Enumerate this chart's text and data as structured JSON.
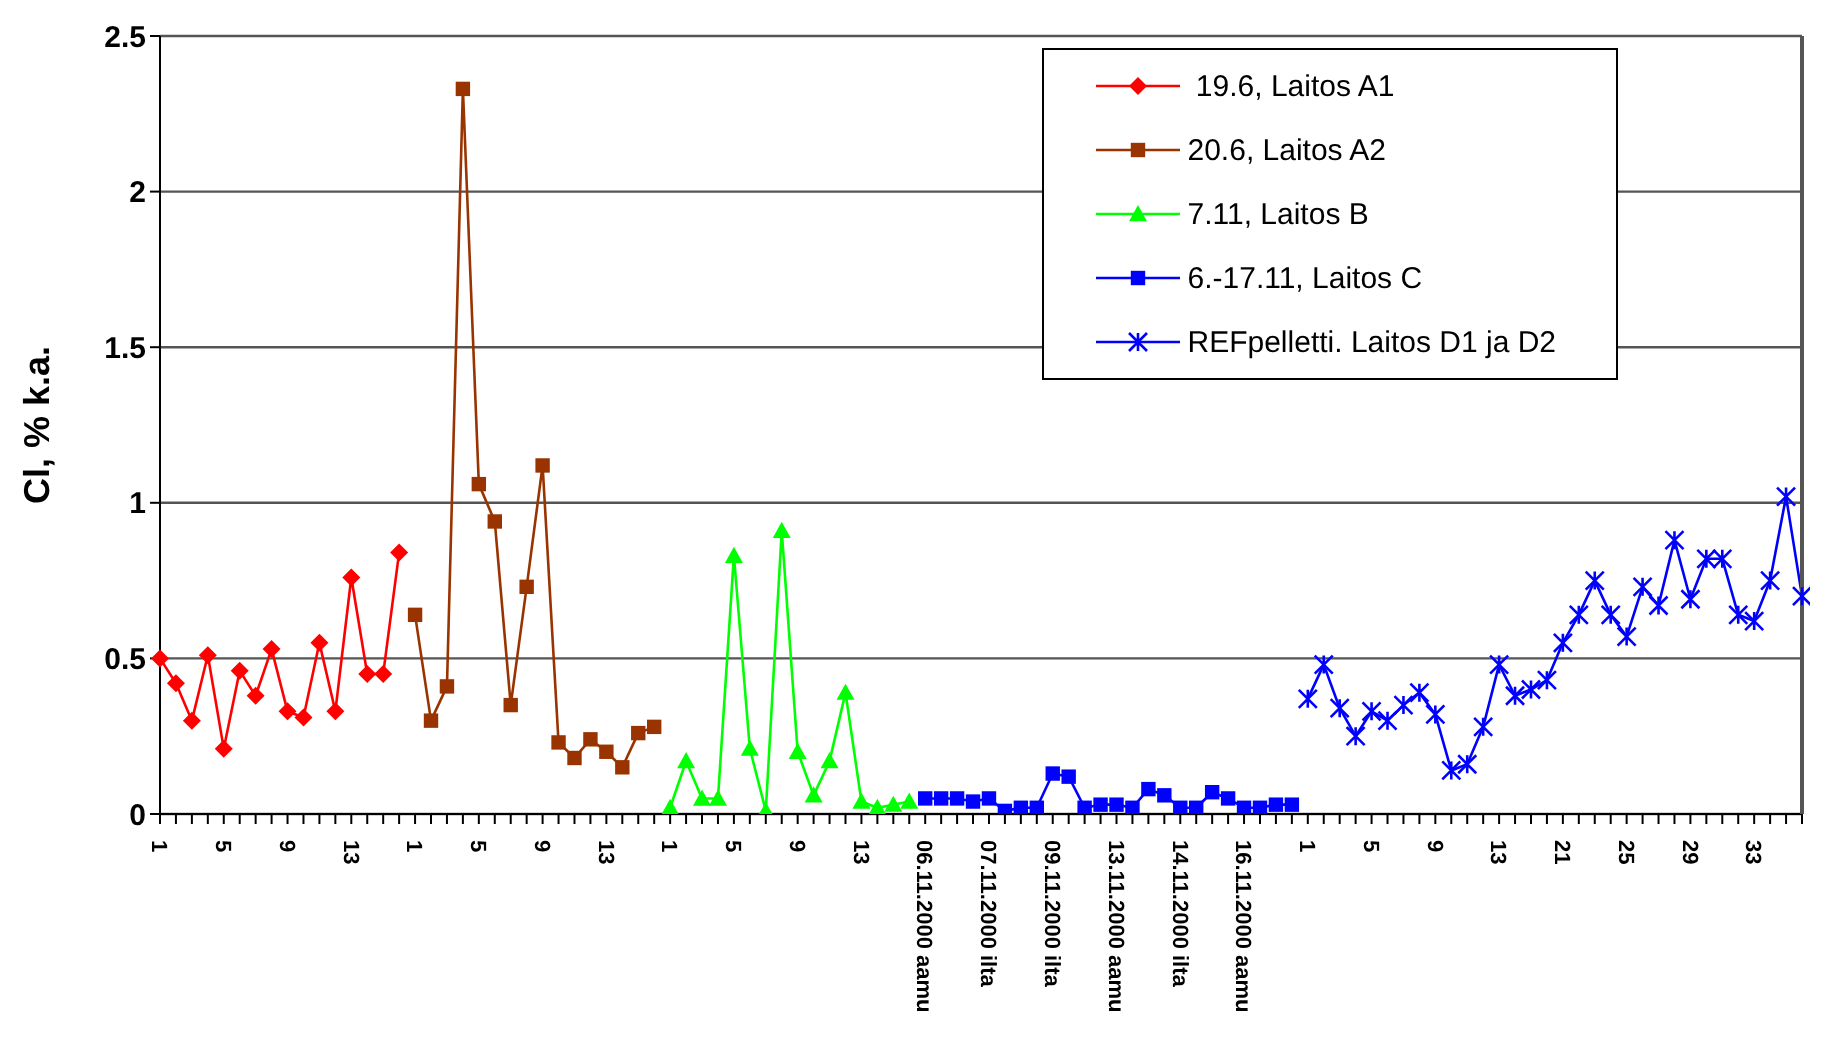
{
  "chart_data": {
    "type": "line",
    "ylabel": "Cl, % k.a.",
    "categories": [
      "1",
      null,
      null,
      null,
      "5",
      null,
      null,
      null,
      "9",
      null,
      null,
      null,
      "13",
      null,
      null,
      null,
      "1",
      null,
      null,
      null,
      "5",
      null,
      null,
      null,
      "9",
      null,
      null,
      null,
      "13",
      null,
      null,
      null,
      "1",
      null,
      null,
      null,
      "5",
      null,
      null,
      null,
      "9",
      null,
      null,
      null,
      "13",
      null,
      null,
      null,
      "06.11.2000 aamu",
      null,
      null,
      null,
      "07.11.2000 ilta",
      null,
      null,
      null,
      "09.11.2000 ilta",
      null,
      null,
      null,
      "13.11.2000 aamu",
      null,
      null,
      null,
      "14.11.2000 ilta",
      null,
      null,
      null,
      "16.11.2000 aamu",
      null,
      null,
      null,
      "1",
      null,
      null,
      null,
      "5",
      null,
      null,
      null,
      "9",
      null,
      null,
      null,
      "13",
      null,
      null,
      null,
      "21",
      null,
      null,
      null,
      "25",
      null,
      null,
      null,
      "29",
      null,
      null,
      null,
      "33",
      null,
      null,
      null
    ],
    "series": [
      {
        "name": " 19.6, Laitos A1",
        "color": "#ff0000",
        "marker": "diamond",
        "values": [
          0.5,
          0.42,
          0.3,
          0.51,
          0.21,
          0.46,
          0.38,
          0.53,
          0.33,
          0.31,
          0.55,
          0.33,
          0.76,
          0.45,
          0.45,
          0.84,
          null,
          null,
          null,
          null,
          null,
          null,
          null,
          null,
          null,
          null,
          null,
          null,
          null,
          null,
          null,
          null,
          null,
          null,
          null,
          null,
          null,
          null,
          null,
          null,
          null,
          null,
          null,
          null,
          null,
          null,
          null,
          null,
          null,
          null,
          null,
          null,
          null,
          null,
          null,
          null,
          null,
          null,
          null,
          null,
          null,
          null,
          null,
          null,
          null,
          null,
          null,
          null,
          null,
          null,
          null,
          null,
          null,
          null,
          null,
          null,
          null,
          null,
          null,
          null,
          null,
          null,
          null,
          null,
          null,
          null,
          null,
          null,
          null,
          null,
          null,
          null,
          null,
          null,
          null,
          null,
          null,
          null,
          null,
          null,
          null,
          null,
          null,
          null
        ]
      },
      {
        "name": "20.6, Laitos A2",
        "color": "#993300",
        "marker": "square",
        "values": [
          null,
          null,
          null,
          null,
          null,
          null,
          null,
          null,
          null,
          null,
          null,
          null,
          null,
          null,
          null,
          null,
          0.64,
          0.3,
          0.41,
          2.33,
          1.06,
          0.94,
          0.35,
          0.73,
          1.12,
          0.23,
          0.18,
          0.24,
          0.2,
          0.15,
          0.26,
          0.28,
          null,
          null,
          null,
          null,
          null,
          null,
          null,
          null,
          null,
          null,
          null,
          null,
          null,
          null,
          null,
          null,
          null,
          null,
          null,
          null,
          null,
          null,
          null,
          null,
          null,
          null,
          null,
          null,
          null,
          null,
          null,
          null,
          null,
          null,
          null,
          null,
          null,
          null,
          null,
          null,
          null,
          null,
          null,
          null,
          null,
          null,
          null,
          null,
          null,
          null,
          null,
          null,
          null,
          null,
          null,
          null,
          null,
          null,
          null,
          null,
          null,
          null,
          null,
          null,
          null,
          null,
          null,
          null,
          null,
          null,
          null,
          null
        ]
      },
      {
        "name": "7.11, Laitos B",
        "color": "#00ff00",
        "marker": "triangle",
        "values": [
          null,
          null,
          null,
          null,
          null,
          null,
          null,
          null,
          null,
          null,
          null,
          null,
          null,
          null,
          null,
          null,
          null,
          null,
          null,
          null,
          null,
          null,
          null,
          null,
          null,
          null,
          null,
          null,
          null,
          null,
          null,
          null,
          0.02,
          0.17,
          0.05,
          0.05,
          0.83,
          0.21,
          0.01,
          0.91,
          0.2,
          0.06,
          0.17,
          0.39,
          0.04,
          0.02,
          0.03,
          0.04,
          null,
          null,
          null,
          null,
          null,
          null,
          null,
          null,
          null,
          null,
          null,
          null,
          null,
          null,
          null,
          null,
          null,
          null,
          null,
          null,
          null,
          null,
          null,
          null,
          null,
          null,
          null,
          null,
          null,
          null,
          null,
          null,
          null,
          null,
          null,
          null,
          null,
          null,
          null,
          null,
          null,
          null,
          null,
          null,
          null,
          null,
          null,
          null,
          null,
          null,
          null,
          null,
          null,
          null,
          null,
          null
        ]
      },
      {
        "name": "6.-17.11, Laitos C",
        "color": "#0000ff",
        "marker": "square",
        "values": [
          null,
          null,
          null,
          null,
          null,
          null,
          null,
          null,
          null,
          null,
          null,
          null,
          null,
          null,
          null,
          null,
          null,
          null,
          null,
          null,
          null,
          null,
          null,
          null,
          null,
          null,
          null,
          null,
          null,
          null,
          null,
          null,
          null,
          null,
          null,
          null,
          null,
          null,
          null,
          null,
          null,
          null,
          null,
          null,
          null,
          null,
          null,
          null,
          0.05,
          0.05,
          0.05,
          0.04,
          0.05,
          0.01,
          0.02,
          0.02,
          0.13,
          0.12,
          0.02,
          0.03,
          0.03,
          0.02,
          0.08,
          0.06,
          0.02,
          0.02,
          0.07,
          0.05,
          0.02,
          0.02,
          0.03,
          0.03,
          null,
          null,
          null,
          null,
          null,
          null,
          null,
          null,
          null,
          null,
          null,
          null,
          null,
          null,
          null,
          null,
          null,
          null,
          null,
          null,
          null,
          null,
          null,
          null,
          null,
          null,
          null,
          null,
          null,
          null,
          null,
          null
        ]
      },
      {
        "name": "REFpelletti. Laitos D1 ja D2",
        "color": "#0000ff",
        "marker": "cross",
        "values": [
          null,
          null,
          null,
          null,
          null,
          null,
          null,
          null,
          null,
          null,
          null,
          null,
          null,
          null,
          null,
          null,
          null,
          null,
          null,
          null,
          null,
          null,
          null,
          null,
          null,
          null,
          null,
          null,
          null,
          null,
          null,
          null,
          null,
          null,
          null,
          null,
          null,
          null,
          null,
          null,
          null,
          null,
          null,
          null,
          null,
          null,
          null,
          null,
          null,
          null,
          null,
          null,
          null,
          null,
          null,
          null,
          null,
          null,
          null,
          null,
          null,
          null,
          null,
          null,
          null,
          null,
          null,
          null,
          null,
          null,
          null,
          null,
          0.37,
          0.48,
          0.34,
          0.25,
          0.33,
          0.3,
          0.35,
          0.39,
          0.32,
          0.14,
          0.16,
          0.28,
          0.48,
          0.38,
          0.4,
          0.43,
          0.55,
          0.64,
          0.75,
          0.64,
          0.57,
          0.73,
          0.67,
          0.88,
          0.69,
          0.82,
          0.82,
          0.64,
          0.62,
          0.75,
          1.02,
          0.7
        ]
      }
    ],
    "ylim": [
      0,
      2.5
    ],
    "yticks": [
      0,
      0.5,
      1,
      1.5,
      2,
      2.5
    ],
    "grid": "y",
    "legend": "top right"
  }
}
